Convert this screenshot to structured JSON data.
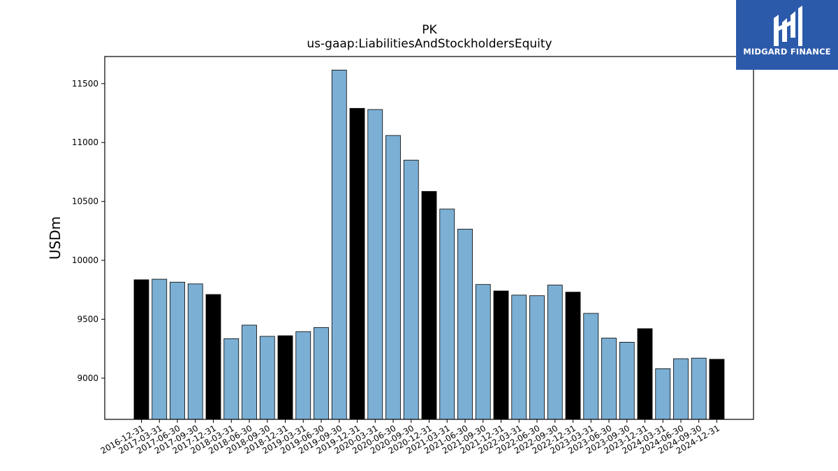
{
  "brand": {
    "name": "MIDGARD FINANCE",
    "logo_icon": "midgard-m-icon",
    "background": "#2c5aaa"
  },
  "chart_data": {
    "type": "bar",
    "title": "PK",
    "subtitle": "us-gaap:LiabilitiesAndStockholdersEquity",
    "xlabel": "",
    "ylabel": "USDm",
    "ylim": [
      8650,
      11730
    ],
    "yticks": [
      9000,
      9500,
      10000,
      10500,
      11000,
      11500
    ],
    "grid": false,
    "colors": {
      "quarter": "#7bafd4",
      "year_end": "#000000",
      "edge": "#000000"
    },
    "categories": [
      "2016-12-31",
      "2017-03-31",
      "2017-06-30",
      "2017-09-30",
      "2017-12-31",
      "2018-03-31",
      "2018-06-30",
      "2018-09-30",
      "2018-12-31",
      "2019-03-31",
      "2019-06-30",
      "2019-09-30",
      "2019-12-31",
      "2020-03-31",
      "2020-06-30",
      "2020-09-30",
      "2020-12-31",
      "2021-03-31",
      "2021-06-30",
      "2021-09-30",
      "2021-12-31",
      "2022-03-31",
      "2022-06-30",
      "2022-09-30",
      "2022-12-31",
      "2023-03-31",
      "2023-06-30",
      "2023-09-30",
      "2023-12-31",
      "2024-03-31",
      "2024-06-30",
      "2024-09-30",
      "2024-12-31"
    ],
    "values": [
      9835,
      9840,
      9815,
      9800,
      9710,
      9335,
      9450,
      9355,
      9360,
      9395,
      9430,
      11615,
      11290,
      11280,
      11060,
      10850,
      10585,
      10435,
      10265,
      9795,
      9740,
      9705,
      9700,
      9790,
      9730,
      9550,
      9340,
      9305,
      9420,
      9080,
      9165,
      9170,
      9160
    ]
  }
}
